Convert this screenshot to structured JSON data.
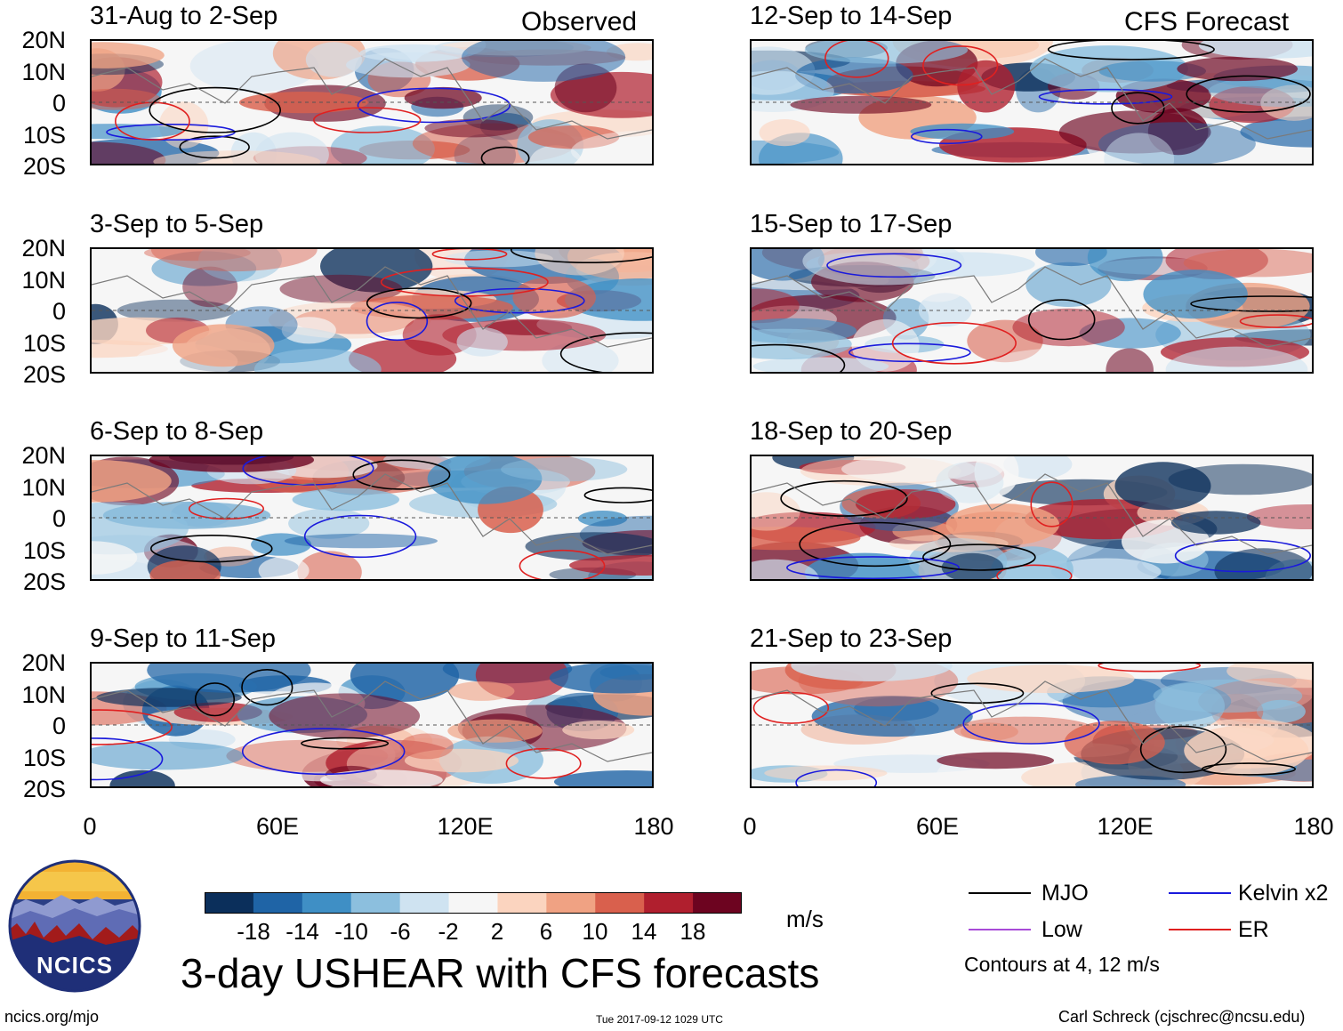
{
  "labels": {
    "observed": "Observed",
    "forecast": "CFS Forecast",
    "main_title": "3-day USHEAR with CFS forecasts",
    "units": "m/s",
    "url": "ncics.org/mjo",
    "timestamp": "Tue 2017-09-12 1029 UTC",
    "credit": "Carl Schreck (cjschrec@ncsu.edu)",
    "logo_text": "NCICS",
    "contours_note": "Contours at 4, 12 m/s"
  },
  "panels_left": [
    {
      "title": "31-Aug to 2-Sep"
    },
    {
      "title": "3-Sep to 5-Sep"
    },
    {
      "title": "6-Sep to 8-Sep"
    },
    {
      "title": "9-Sep to 11-Sep"
    }
  ],
  "panels_right": [
    {
      "title": "12-Sep to 14-Sep"
    },
    {
      "title": "15-Sep to 17-Sep"
    },
    {
      "title": "18-Sep to 20-Sep"
    },
    {
      "title": "21-Sep to 23-Sep"
    }
  ],
  "lat_labels": [
    "20N",
    "10N",
    "0",
    "10S",
    "20S"
  ],
  "lon_labels": [
    "0",
    "60E",
    "120E",
    "180"
  ],
  "colorbar": {
    "colors": [
      "#0b2f5b",
      "#1f64a6",
      "#3f8fc5",
      "#8cbfde",
      "#cfe3f1",
      "#f6f6f6",
      "#fbd4bf",
      "#f0a283",
      "#d9604d",
      "#b01f2e",
      "#6d0420"
    ],
    "labels": [
      "-18",
      "-14",
      "-10",
      "-6",
      "-2",
      "2",
      "6",
      "10",
      "14",
      "18"
    ]
  },
  "legend": [
    {
      "label": "MJO",
      "color": "#000000"
    },
    {
      "label": "Kelvin x2",
      "color": "#1a1adc"
    },
    {
      "label": "Low",
      "color": "#a84bd8"
    },
    {
      "label": "ER",
      "color": "#e02020"
    }
  ]
}
